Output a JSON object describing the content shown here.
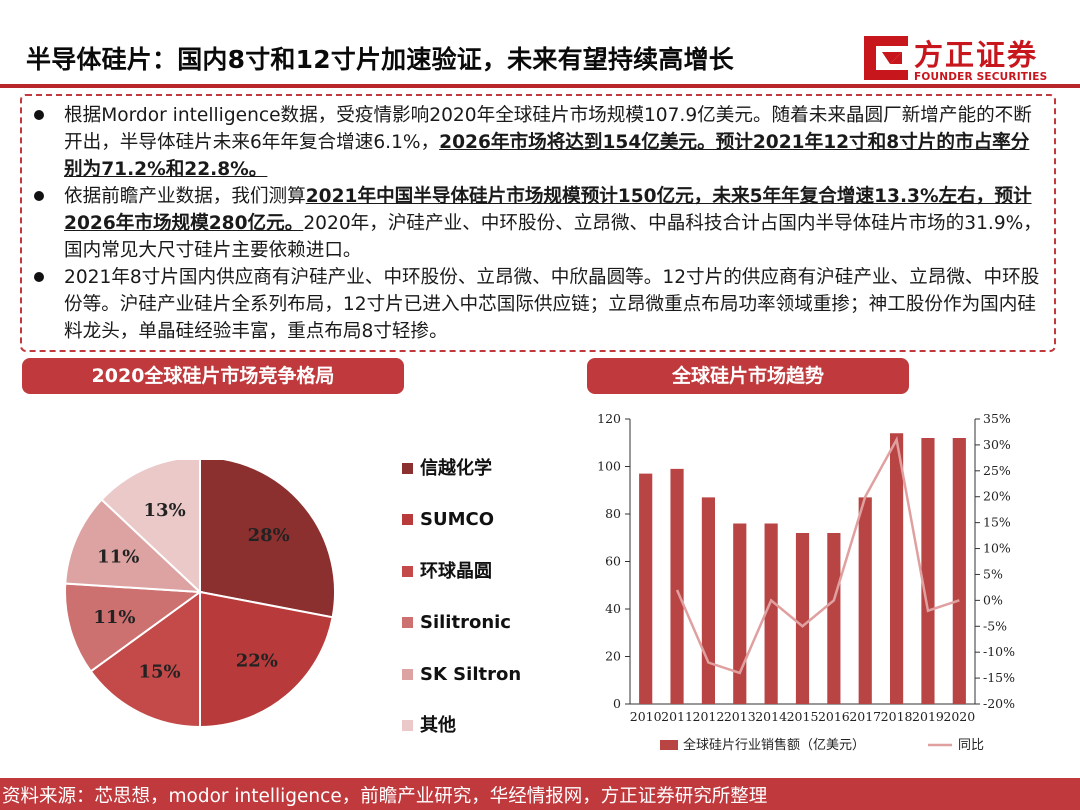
{
  "header": {
    "title": "半导体硅片：国内8寸和12寸片加速验证，未来有望持续高增长",
    "logo": {
      "cn": "方正证券",
      "en": "FOUNDER SECURITIES",
      "icon": "founder-logo-icon"
    }
  },
  "summary": {
    "bullets": [
      {
        "parts": [
          {
            "text": "根据Mordor intelligence数据，受疫情影响2020年全球硅片市场规模107.9亿美元。随着未来晶圆厂新增产能的不断开出，半导体硅片未来6年年复合增速6.1%，",
            "bold": false
          },
          {
            "text": "2026年市场将达到154亿美元。预计2021年12寸和8寸片的市占率分别为71.2%和22.8%。",
            "bold": true
          }
        ]
      },
      {
        "parts": [
          {
            "text": "依据前瞻产业数据，我们测算",
            "bold": false
          },
          {
            "text": "2021年中国半导体硅片市场规模预计150亿元，未来5年年复合增速13.3%左右，预计2026年市场规模280亿元。",
            "bold": true
          },
          {
            "text": "2020年，沪硅产业、中环股份、立昂微、中晶科技合计占国内半导体硅片市场的31.9%，国内常见大尺寸硅片主要依赖进口。",
            "bold": false
          }
        ]
      },
      {
        "parts": [
          {
            "text": "2021年8寸片国内供应商有沪硅产业、中环股份、立昂微、中欣晶圆等。12寸片的供应商有沪硅产业、立昂微、中环股份等。沪硅产业硅片全系列布局，12寸片已进入中芯国际供应链；立昂微重点布局功率领域重掺；神工股份作为国内硅料龙头，单晶硅经验丰富，重点布局8寸轻掺。",
            "bold": false
          }
        ]
      }
    ]
  },
  "pie_section": {
    "header": "2020全球硅片市场竞争格局"
  },
  "trend_section": {
    "header": "全球硅片市场趋势"
  },
  "footer": {
    "text": "资料来源：芯思想，modor intelligence，前瞻产业研究，华经情报网，方正证券研究所整理"
  },
  "chart_data": [
    {
      "type": "pie",
      "title": "",
      "labels": [
        "信越化学",
        "SUMCO",
        "环球晶圆",
        "Silitronic",
        "SK Siltron",
        "其他"
      ],
      "values": [
        28,
        22,
        15,
        11,
        11,
        13
      ],
      "value_labels": [
        "28%",
        "22%",
        "15%",
        "11%",
        "11%",
        "13%"
      ],
      "colors": [
        "#8b2f2f",
        "#b83a3a",
        "#c44949",
        "#cc7070",
        "#dda3a3",
        "#ecc9c9"
      ],
      "legend_position": "right"
    },
    {
      "type": "bar",
      "title": "",
      "categories": [
        "2010",
        "2011",
        "2012",
        "2013",
        "2014",
        "2015",
        "2016",
        "2017",
        "2018",
        "2019",
        "2020"
      ],
      "series": [
        {
          "name": "全球硅片行业销售额（亿美元）",
          "type": "bar",
          "axis": "left",
          "color": "#b84444",
          "values": [
            97,
            99,
            87,
            76,
            76,
            72,
            72,
            87,
            114,
            112,
            112
          ]
        },
        {
          "name": "同比",
          "type": "line",
          "axis": "right",
          "color": "#e0a0a0",
          "values": [
            null,
            2,
            -12,
            -14,
            0,
            -5,
            0,
            20,
            31,
            -2,
            0
          ]
        }
      ],
      "y_left": {
        "min": 0,
        "max": 120,
        "ticks": [
          "0",
          "20",
          "40",
          "60",
          "80",
          "100",
          "120"
        ]
      },
      "y_right": {
        "min": -20,
        "max": 35,
        "ticks": [
          "-20%",
          "-15%",
          "-10%",
          "-5%",
          "0%",
          "5%",
          "10%",
          "15%",
          "20%",
          "25%",
          "30%",
          "35%"
        ]
      },
      "grid": false,
      "legend_position": "bottom"
    }
  ]
}
